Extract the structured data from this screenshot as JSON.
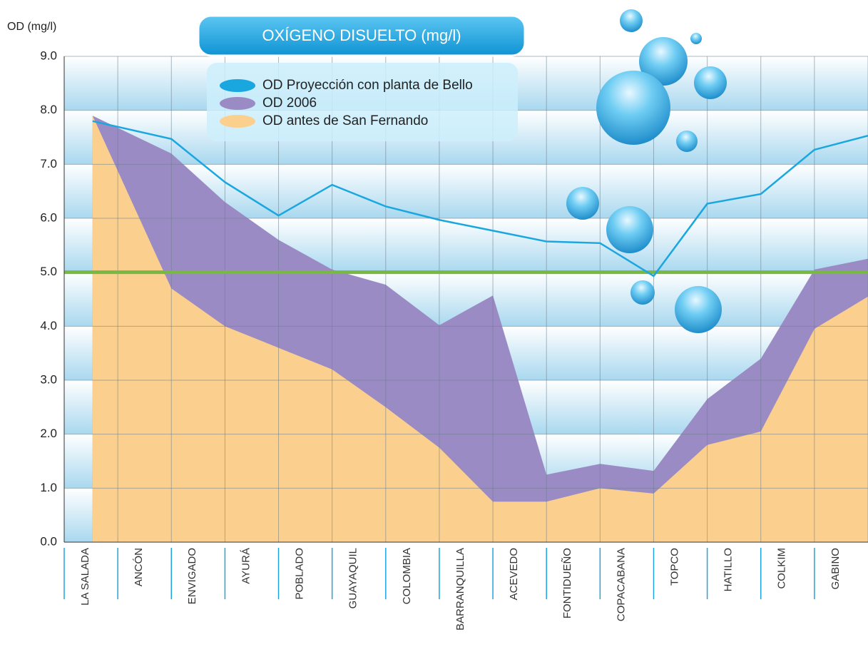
{
  "chart_data": {
    "type": "area_line",
    "title": "OXÍGENO DISUELTO (mg/l)",
    "y_label": "OD (mg/l)",
    "categories": [
      "LA SALADA",
      "ANCÓN",
      "ENVIGADO",
      "AYURÁ",
      "POBLADO",
      "GUAYAQUIL",
      "COLOMBIA",
      "BARRANQUILLA",
      "ACEVEDO",
      "FONTIDUEÑO",
      "COPACABANA",
      "TOPCO",
      "HATILLO",
      "COLKIM",
      "GABINO"
    ],
    "series": [
      {
        "name": "OD Proyección con planta de Bello",
        "color": "#1aa7e0",
        "kind": "line",
        "values": [
          7.8,
          7.47,
          6.67,
          6.05,
          6.62,
          6.22,
          5.97,
          5.77,
          5.57,
          5.54,
          4.93,
          6.27,
          6.45,
          7.27,
          7.53
        ]
      },
      {
        "name": "OD 2006",
        "color": "#9b8bc4",
        "kind": "area",
        "values": [
          7.9,
          7.2,
          6.3,
          5.6,
          5.05,
          4.77,
          4.02,
          4.57,
          1.25,
          1.45,
          1.32,
          2.65,
          3.4,
          5.05,
          5.25
        ]
      },
      {
        "name": "OD antes de San Fernando",
        "color": "#fbd08f",
        "kind": "area",
        "values": [
          7.9,
          4.7,
          4.0,
          3.6,
          3.2,
          2.5,
          1.75,
          0.75,
          0.75,
          1.0,
          0.9,
          1.8,
          2.05,
          3.95,
          4.55
        ]
      }
    ],
    "threshold": 5.0,
    "threshold_color": "#78b843",
    "ylim": [
      0,
      9
    ],
    "yticks": [
      {
        "value": 0,
        "label": "0.0"
      },
      {
        "value": 1,
        "label": "1.0"
      },
      {
        "value": 2,
        "label": "2.0"
      },
      {
        "value": 3,
        "label": "3.0"
      },
      {
        "value": 4,
        "label": "4.0"
      },
      {
        "value": 5,
        "label": "5.0"
      },
      {
        "value": 6,
        "label": "6.0"
      },
      {
        "value": 7,
        "label": "7.0"
      },
      {
        "value": 8,
        "label": "8.0"
      },
      {
        "value": 9,
        "label": "9.0"
      }
    ],
    "grid": true
  }
}
